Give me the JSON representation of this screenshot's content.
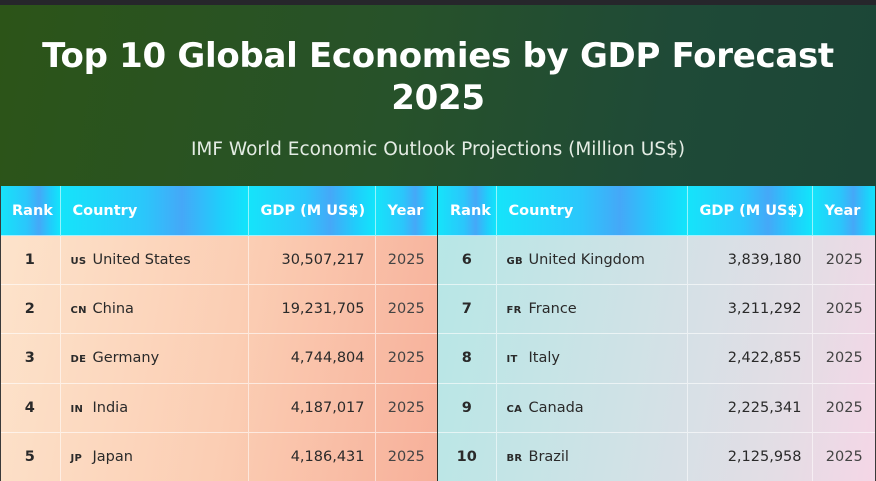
{
  "title": "Top 10 Global Economies by GDP Forecast 2025",
  "subtitle": "IMF World Economic Outlook Projections (Million US$)",
  "columns": {
    "rank": "Rank",
    "country": "Country",
    "gdp": "GDP (M US$)",
    "year": "Year"
  },
  "rows": [
    {
      "rank": "1",
      "code": "US",
      "country": "United States",
      "gdp": "30,507,217",
      "year": "2025"
    },
    {
      "rank": "2",
      "code": "CN",
      "country": "China",
      "gdp": "19,231,705",
      "year": "2025"
    },
    {
      "rank": "3",
      "code": "DE",
      "country": "Germany",
      "gdp": "4,744,804",
      "year": "2025"
    },
    {
      "rank": "4",
      "code": "IN",
      "country": "India",
      "gdp": "4,187,017",
      "year": "2025"
    },
    {
      "rank": "5",
      "code": "JP",
      "country": "Japan",
      "gdp": "4,186,431",
      "year": "2025"
    },
    {
      "rank": "6",
      "code": "GB",
      "country": "United Kingdom",
      "gdp": "3,839,180",
      "year": "2025"
    },
    {
      "rank": "7",
      "code": "FR",
      "country": "France",
      "gdp": "3,211,292",
      "year": "2025"
    },
    {
      "rank": "8",
      "code": "IT",
      "country": "Italy",
      "gdp": "2,422,855",
      "year": "2025"
    },
    {
      "rank": "9",
      "code": "CA",
      "country": "Canada",
      "gdp": "2,225,341",
      "year": "2025"
    },
    {
      "rank": "10",
      "code": "BR",
      "country": "Brazil",
      "gdp": "2,125,958",
      "year": "2025"
    }
  ],
  "colors": {
    "header_bg": "#27522a",
    "table_header": "#2bc6fb",
    "left_table": "#fbcdb3",
    "right_table": "#cfe2e6"
  }
}
